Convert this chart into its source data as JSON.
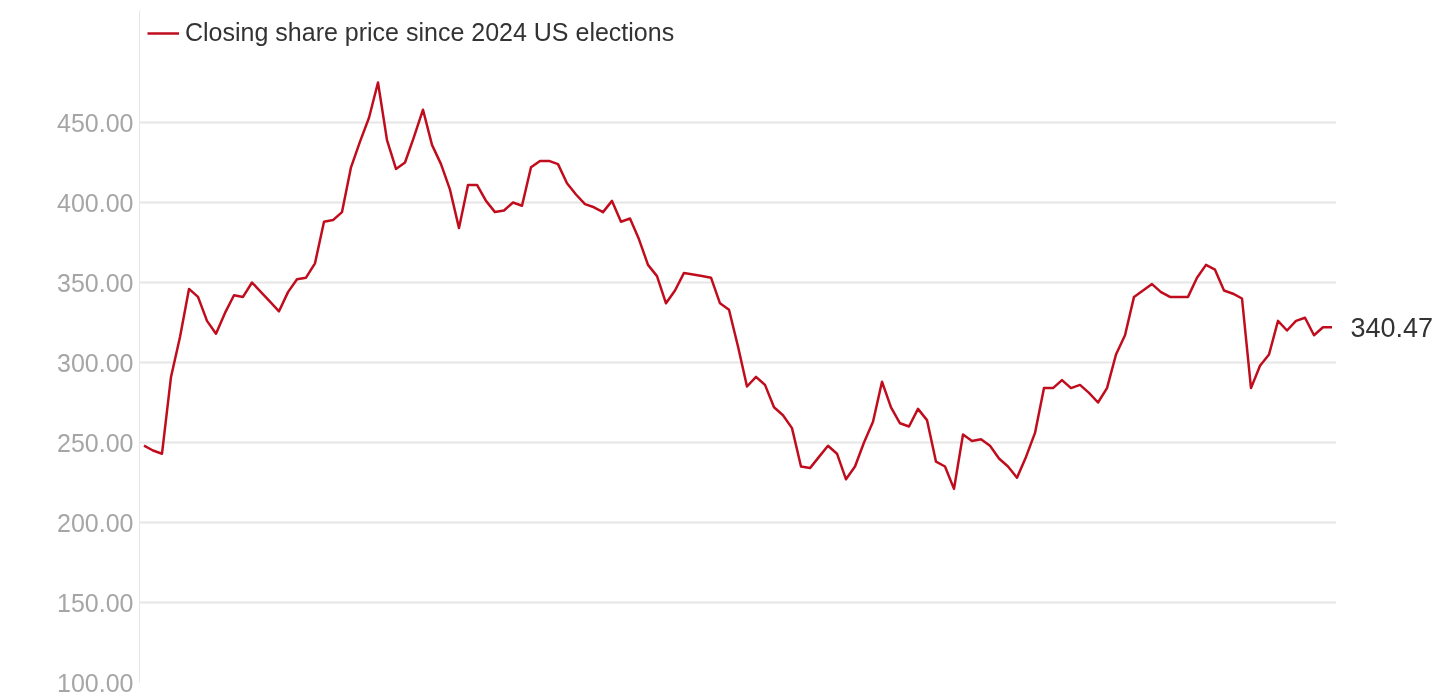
{
  "chart_data": {
    "type": "line",
    "categories": [
      null,
      null,
      null,
      null,
      null,
      null,
      null,
      null,
      null,
      null,
      null,
      null,
      null,
      null,
      null,
      null,
      null,
      null,
      null,
      null,
      null,
      null,
      null,
      null,
      null,
      null,
      null,
      null,
      null,
      null,
      null,
      null,
      null,
      null,
      null,
      null,
      null,
      null,
      null,
      null,
      null,
      null,
      null,
      null,
      null,
      null,
      null,
      null,
      null,
      null,
      null,
      null,
      null,
      null,
      null,
      null,
      null,
      null,
      null,
      null,
      null,
      null,
      null,
      null,
      null,
      null,
      null,
      null,
      null,
      null,
      null,
      null,
      null,
      null,
      null,
      null,
      null,
      null,
      null,
      null,
      null,
      null,
      null,
      null,
      null,
      null,
      null,
      null,
      null,
      null,
      null,
      null,
      null,
      null,
      null,
      null,
      null,
      null,
      null,
      null,
      null,
      null,
      null,
      null,
      null,
      null,
      null,
      null,
      null,
      null,
      null,
      null,
      null,
      null,
      null,
      null,
      null,
      null,
      null,
      null,
      null,
      null,
      null,
      null,
      null,
      null,
      null,
      null,
      null,
      null,
      null,
      null,
      null
    ],
    "series": [
      {
        "name": "Closing share price since 2024 US elections",
        "color": "#c00d1e",
        "values": [
          248,
          245,
          243,
          291,
          316,
          346,
          341,
          326,
          318,
          331,
          342,
          341,
          350,
          344,
          338,
          332,
          344,
          352,
          353,
          362,
          388,
          389,
          394,
          422,
          438,
          453,
          475,
          439,
          421,
          425,
          441,
          458,
          436,
          424,
          408,
          384,
          411,
          411,
          401,
          394,
          395,
          400,
          398,
          422,
          426,
          426,
          424,
          412,
          405,
          399,
          397,
          394,
          401,
          388,
          390,
          377,
          361,
          354,
          337,
          345,
          356,
          355,
          354,
          353,
          337,
          333,
          310,
          285,
          291,
          286,
          272,
          267,
          259,
          235,
          234,
          241,
          248,
          243,
          227,
          235,
          250,
          263,
          288,
          272,
          262,
          260,
          271,
          264,
          238,
          235,
          221,
          255,
          251,
          252,
          248,
          240,
          235,
          228,
          241,
          256,
          284,
          284,
          289,
          284,
          286,
          281,
          275,
          284,
          305,
          317,
          341,
          345,
          349,
          344,
          341,
          341,
          341,
          353,
          361,
          358,
          345,
          343,
          340,
          284,
          298,
          305,
          326,
          320,
          326,
          328,
          317,
          322,
          322
        ]
      }
    ],
    "ylim": [
      100,
      520
    ],
    "yticks": [
      {
        "value": 100,
        "label": "100.00"
      },
      {
        "value": 150,
        "label": "150.00"
      },
      {
        "value": 200,
        "label": "200.00"
      },
      {
        "value": 250,
        "label": "250.00"
      },
      {
        "value": 300,
        "label": "300.00"
      },
      {
        "value": 350,
        "label": "350.00"
      },
      {
        "value": 400,
        "label": "400.00"
      },
      {
        "value": 450,
        "label": "450.00"
      }
    ],
    "grid": "y",
    "legend": "top left",
    "tick_labels": "y",
    "marker": "none",
    "line_style": "solid",
    "annotations": [
      "340.47"
    ]
  }
}
